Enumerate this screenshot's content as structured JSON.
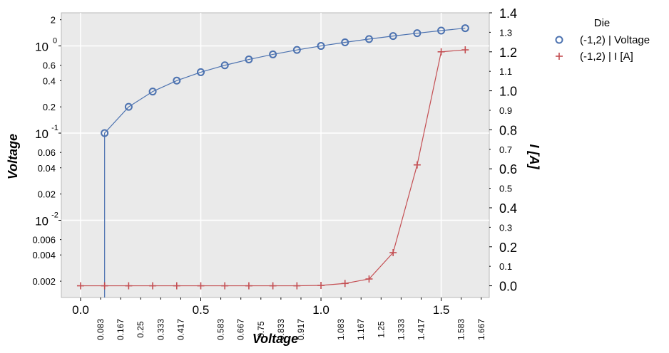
{
  "chart_data": {
    "type": "line",
    "xlabel": "Voltage",
    "ylabel_left": "Voltage",
    "ylabel_right": "I [A]",
    "xlim": [
      -0.08,
      1.7
    ],
    "ylim_left": [
      0.0013,
      2.4
    ],
    "ylim_right": [
      -0.06,
      1.4
    ],
    "left_scale": "log",
    "grid": true,
    "legend": {
      "title": "Die",
      "placement": "outside-right"
    },
    "x_major_ticks": [
      {
        "v": 0.0,
        "label": "0.0"
      },
      {
        "v": 0.5,
        "label": "0.5"
      },
      {
        "v": 1.0,
        "label": "1.0"
      },
      {
        "v": 1.5,
        "label": "1.5"
      }
    ],
    "x_minor_ticks": [
      {
        "v": 0.0833,
        "label": "0.083"
      },
      {
        "v": 0.1667,
        "label": "0.167"
      },
      {
        "v": 0.25,
        "label": "0.25"
      },
      {
        "v": 0.3333,
        "label": "0.333"
      },
      {
        "v": 0.4167,
        "label": "0.417"
      },
      {
        "v": 0.5833,
        "label": "0.583"
      },
      {
        "v": 0.6667,
        "label": "0.667"
      },
      {
        "v": 0.75,
        "label": "0.75"
      },
      {
        "v": 0.8333,
        "label": "0.833"
      },
      {
        "v": 0.9167,
        "label": "0.917"
      },
      {
        "v": 1.0833,
        "label": "1.083"
      },
      {
        "v": 1.1667,
        "label": "1.167"
      },
      {
        "v": 1.25,
        "label": "1.25"
      },
      {
        "v": 1.3333,
        "label": "1.333"
      },
      {
        "v": 1.4167,
        "label": "1.417"
      },
      {
        "v": 1.5833,
        "label": "1.583"
      },
      {
        "v": 1.6667,
        "label": "1.667"
      }
    ],
    "left_major_ticks": [
      {
        "v": 1,
        "base": "10",
        "exp": "0"
      },
      {
        "v": 0.1,
        "base": "10",
        "exp": "-1"
      },
      {
        "v": 0.01,
        "base": "10",
        "exp": "-2"
      }
    ],
    "left_minor_ticks": [
      {
        "v": 2,
        "label": "2"
      },
      {
        "v": 0.6,
        "label": "0.6"
      },
      {
        "v": 0.4,
        "label": "0.4"
      },
      {
        "v": 0.2,
        "label": "0.2"
      },
      {
        "v": 0.06,
        "label": "0.06"
      },
      {
        "v": 0.04,
        "label": "0.04"
      },
      {
        "v": 0.02,
        "label": "0.02"
      },
      {
        "v": 0.006,
        "label": "0.006"
      },
      {
        "v": 0.004,
        "label": "0.004"
      },
      {
        "v": 0.002,
        "label": "0.002"
      }
    ],
    "right_major_ticks": [
      {
        "v": 1.4,
        "label": "1.4"
      },
      {
        "v": 1.2,
        "label": "1.2"
      },
      {
        "v": 1.0,
        "label": "1.0"
      },
      {
        "v": 0.8,
        "label": "0.8"
      },
      {
        "v": 0.6,
        "label": "0.6"
      },
      {
        "v": 0.4,
        "label": "0.4"
      },
      {
        "v": 0.2,
        "label": "0.2"
      },
      {
        "v": 0.0,
        "label": "0.0"
      }
    ],
    "right_minor_ticks": [
      {
        "v": 1.3,
        "label": "1.3"
      },
      {
        "v": 1.1,
        "label": "1.1"
      },
      {
        "v": 0.9,
        "label": "0.9"
      },
      {
        "v": 0.7,
        "label": "0.7"
      },
      {
        "v": 0.5,
        "label": "0.5"
      },
      {
        "v": 0.3,
        "label": "0.3"
      },
      {
        "v": 0.1,
        "label": "0.1"
      }
    ],
    "series": [
      {
        "name": "(-1,2) | Voltage",
        "axis": "left",
        "marker": "circle",
        "color": "#4c72b0",
        "x": [
          0.1,
          0.2,
          0.3,
          0.4,
          0.5,
          0.6,
          0.7,
          0.8,
          0.9,
          1.0,
          1.1,
          1.2,
          1.3,
          1.4,
          1.5,
          1.6
        ],
        "y": [
          0.1,
          0.2,
          0.3,
          0.4,
          0.5,
          0.6,
          0.7,
          0.8,
          0.9,
          1.0,
          1.1,
          1.2,
          1.3,
          1.4,
          1.5,
          1.6
        ]
      },
      {
        "name": "(-1,2) | I [A]",
        "axis": "right",
        "marker": "plus",
        "color": "#c44e52",
        "x": [
          0.0,
          0.1,
          0.2,
          0.3,
          0.4,
          0.5,
          0.6,
          0.7,
          0.8,
          0.9,
          1.0,
          1.1,
          1.2,
          1.3,
          1.4,
          1.5,
          1.6
        ],
        "y": [
          0.0,
          0.0,
          0.0,
          0.0,
          0.0,
          0.0,
          0.0,
          0.0,
          0.0,
          0.0,
          0.002,
          0.012,
          0.035,
          0.17,
          0.62,
          1.2,
          1.21
        ]
      }
    ]
  }
}
